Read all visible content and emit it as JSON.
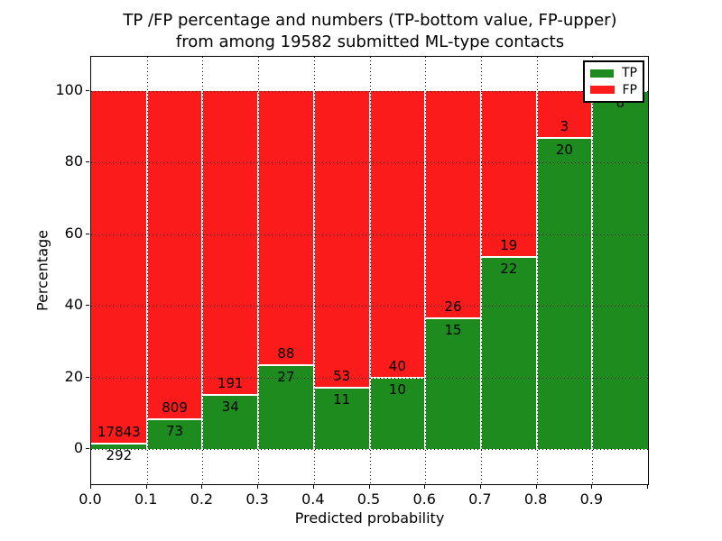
{
  "figure": {
    "title_line1": "TP /FP percentage and numbers (TP-bottom value, FP-upper)",
    "title_line2": "from among 19582 submitted ML-type contacts",
    "xlabel": "Predicted probability",
    "ylabel": "Percentage",
    "background_color": "#ffffff",
    "legend": {
      "position": "upper right",
      "items": [
        {
          "label": "TP",
          "color": "#1e8b1e"
        },
        {
          "label": "FP",
          "color": "#fb1b1b"
        }
      ]
    }
  },
  "chart_data": {
    "type": "bar",
    "stacked": true,
    "title": "TP /FP percentage and numbers (TP-bottom value, FP-upper)\nfrom among 19582 submitted ML-type contacts",
    "xlabel": "Predicted probability",
    "ylabel": "Percentage",
    "grid": "dotted black, horizontal and vertical",
    "legend_position": "upper right",
    "xlim": [
      0.0,
      1.0
    ],
    "ylim": [
      -10.3,
      109.6
    ],
    "x_tick_labels": [
      "0.0",
      "0.1",
      "0.2",
      "0.3",
      "0.4",
      "0.5",
      "0.6",
      "0.7",
      "0.8",
      "0.9"
    ],
    "y_ticks": [
      0,
      20,
      40,
      60,
      80,
      100
    ],
    "categories": [
      "0.0-0.1",
      "0.1-0.2",
      "0.2-0.3",
      "0.3-0.4",
      "0.4-0.5",
      "0.5-0.6",
      "0.6-0.7",
      "0.7-0.8",
      "0.8-0.9",
      "0.9-1.0"
    ],
    "series": [
      {
        "name": "TP",
        "color": "#1e8b1e",
        "counts": [
          292,
          73,
          34,
          27,
          11,
          10,
          15,
          22,
          20,
          6
        ]
      },
      {
        "name": "FP",
        "color": "#fb1b1b",
        "counts": [
          17843,
          809,
          191,
          88,
          53,
          40,
          26,
          19,
          3,
          0
        ]
      }
    ],
    "tp_percent": [
      1.61,
      8.28,
      15.11,
      23.48,
      17.19,
      20.0,
      36.59,
      53.66,
      86.96,
      100.0
    ],
    "total_contacts_in_title": 19582,
    "note": "Each bar totals 100%; green TP portion on bottom, red FP on top. FP count printed above the TP/FP seam, TP count below it. Last bar labels partially hidden behind the legend box."
  }
}
